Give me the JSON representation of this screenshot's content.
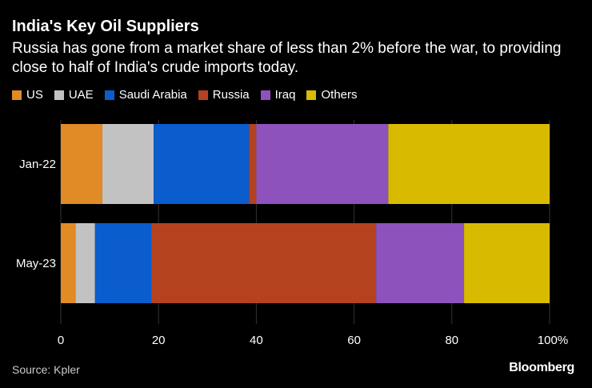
{
  "header": {
    "title": "India's Key Oil Suppliers",
    "subtitle": "Russia has gone from a market share of less than 2% before the war, to providing close to half of India's crude imports today."
  },
  "footer": {
    "source": "Source: Kpler",
    "brand": "Bloomberg"
  },
  "chart_data": {
    "type": "bar",
    "orientation": "horizontal",
    "stacked": true,
    "title": "India's Key Oil Suppliers",
    "subtitle": "Russia has gone from a market share of less than 2% before the war, to providing close to half of India's crude imports today.",
    "categories": [
      "Jan-22",
      "May-23"
    ],
    "series": [
      {
        "name": "US",
        "color": "#e08b26",
        "values": [
          8.5,
          3
        ]
      },
      {
        "name": "UAE",
        "color": "#c2c2c2",
        "values": [
          10.5,
          4
        ]
      },
      {
        "name": "Saudi Arabia",
        "color": "#0b5ccc",
        "values": [
          19.5,
          11.5
        ]
      },
      {
        "name": "Russia",
        "color": "#b5421f",
        "values": [
          1.5,
          46
        ]
      },
      {
        "name": "Iraq",
        "color": "#8e52bd",
        "values": [
          27,
          18
        ]
      },
      {
        "name": "Others",
        "color": "#d8bb00",
        "values": [
          33,
          17.5
        ]
      }
    ],
    "xlim": [
      0,
      100
    ],
    "xticks": [
      "0",
      "20",
      "40",
      "60",
      "80",
      "100%"
    ],
    "xtick_values": [
      0,
      20,
      40,
      60,
      80,
      100
    ],
    "legend_position": "top-left",
    "grid": true
  }
}
